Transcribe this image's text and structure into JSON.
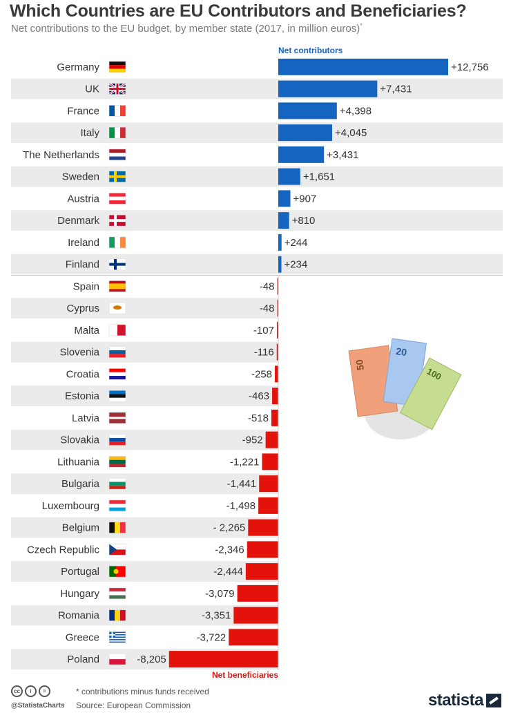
{
  "header": {
    "title": "Which Countries are EU Contributors and Beneficiaries?",
    "subtitle": "Net contributions to the EU budget, by member state (2017, in million euros)",
    "subtitle_mark": "*"
  },
  "chart_data": {
    "type": "bar",
    "orientation": "horizontal",
    "title": "Which Countries are EU Contributors and Beneficiaries?",
    "unit": "million euros",
    "positive_label": "Net contributors",
    "negative_label": "Net beneficiaries",
    "colors": {
      "positive": "#1565c0",
      "negative": "#e3120b",
      "stripe": "#ebebeb"
    },
    "countries": [
      {
        "name": "Germany",
        "value": 12756,
        "label": "+12,756",
        "flag": "de-flag-icon"
      },
      {
        "name": "UK",
        "value": 7431,
        "label": "+7,431",
        "flag": "uk-flag-icon"
      },
      {
        "name": "France",
        "value": 4398,
        "label": "+4,398",
        "flag": "fr-flag-icon"
      },
      {
        "name": "Italy",
        "value": 4045,
        "label": "+4,045",
        "flag": "it-flag-icon"
      },
      {
        "name": "The Netherlands",
        "value": 3431,
        "label": "+3,431",
        "flag": "nl-flag-icon"
      },
      {
        "name": "Sweden",
        "value": 1651,
        "label": "+1,651",
        "flag": "se-flag-icon"
      },
      {
        "name": "Austria",
        "value": 907,
        "label": "+907",
        "flag": "at-flag-icon"
      },
      {
        "name": "Denmark",
        "value": 810,
        "label": "+810",
        "flag": "dk-flag-icon"
      },
      {
        "name": "Ireland",
        "value": 244,
        "label": "+244",
        "flag": "ie-flag-icon"
      },
      {
        "name": "Finland",
        "value": 234,
        "label": "+234",
        "flag": "fi-flag-icon"
      },
      {
        "name": "Spain",
        "value": -48,
        "label": "-48",
        "flag": "es-flag-icon"
      },
      {
        "name": "Cyprus",
        "value": -48,
        "label": "-48",
        "flag": "cy-flag-icon"
      },
      {
        "name": "Malta",
        "value": -107,
        "label": "-107",
        "flag": "mt-flag-icon"
      },
      {
        "name": "Slovenia",
        "value": -116,
        "label": "-116",
        "flag": "si-flag-icon"
      },
      {
        "name": "Croatia",
        "value": -258,
        "label": "-258",
        "flag": "hr-flag-icon"
      },
      {
        "name": "Estonia",
        "value": -463,
        "label": "-463",
        "flag": "ee-flag-icon"
      },
      {
        "name": "Latvia",
        "value": -518,
        "label": "-518",
        "flag": "lv-flag-icon"
      },
      {
        "name": "Slovakia",
        "value": -952,
        "label": "-952",
        "flag": "sk-flag-icon"
      },
      {
        "name": "Lithuania",
        "value": -1221,
        "label": "-1,221",
        "flag": "lt-flag-icon"
      },
      {
        "name": "Bulgaria",
        "value": -1441,
        "label": "-1,441",
        "flag": "bg-flag-icon"
      },
      {
        "name": "Luxembourg",
        "value": -1498,
        "label": "-1,498",
        "flag": "lu-flag-icon"
      },
      {
        "name": "Belgium",
        "value": -2265,
        "label": "- 2,265",
        "flag": "be-flag-icon"
      },
      {
        "name": "Czech Republic",
        "value": -2346,
        "label": "-2,346",
        "flag": "cz-flag-icon"
      },
      {
        "name": "Portugal",
        "value": -2444,
        "label": "-2,444",
        "flag": "pt-flag-icon"
      },
      {
        "name": "Hungary",
        "value": -3079,
        "label": "-3,079",
        "flag": "hu-flag-icon"
      },
      {
        "name": "Romania",
        "value": -3351,
        "label": "-3,351",
        "flag": "ro-flag-icon"
      },
      {
        "name": "Greece",
        "value": -3722,
        "label": "-3,722",
        "flag": "gr-flag-icon"
      },
      {
        "name": "Poland",
        "value": -8205,
        "label": "-8,205",
        "flag": "pl-flag-icon"
      }
    ]
  },
  "illustration": {
    "notes": [
      "50",
      "20",
      "100"
    ]
  },
  "footer": {
    "note": "* contributions minus funds received",
    "source": "Source: European Commission",
    "handle": "@StatistaCharts",
    "brand": "statista"
  }
}
